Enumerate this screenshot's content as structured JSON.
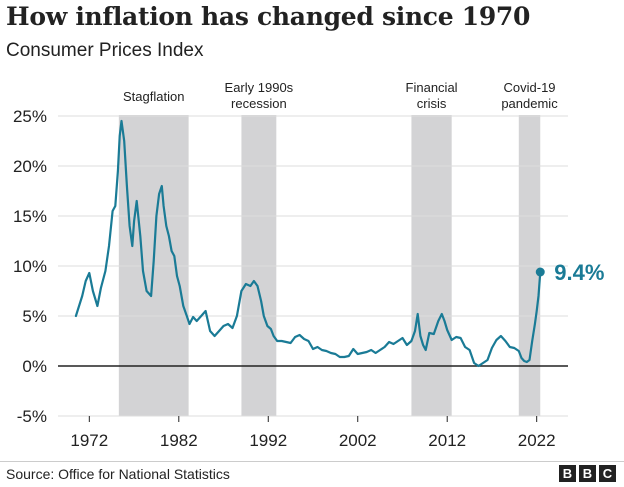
{
  "header": {
    "title": "How inflation has changed since 1970",
    "subtitle": "Consumer Prices Index"
  },
  "footer": {
    "source": "Source: Office for National Statistics",
    "brand_letters": [
      "B",
      "B",
      "C"
    ]
  },
  "colors": {
    "line": "#1a7b96",
    "band": "#d3d3d5",
    "grid": "#dddddd",
    "zero_line": "#222222",
    "text": "#222222"
  },
  "chart_data": {
    "type": "line",
    "title": "How inflation has changed since 1970",
    "subtitle": "Consumer Prices Index",
    "xlabel": "",
    "ylabel": "",
    "x_ticks": [
      1972,
      1982,
      1992,
      2002,
      2012,
      2022
    ],
    "x_tick_labels": [
      "1972",
      "1982",
      "1992",
      "2002",
      "2012",
      "2022"
    ],
    "y_ticks": [
      -5,
      0,
      5,
      10,
      15,
      20,
      25
    ],
    "y_tick_labels": [
      "-5%",
      "0%",
      "5%",
      "10%",
      "15%",
      "20%",
      "25%"
    ],
    "xlim": [
      1968.5,
      2025.5
    ],
    "ylim": [
      -5,
      25
    ],
    "grid": true,
    "end_label": "9.4%",
    "shaded_periods": [
      {
        "label": "Stagflation",
        "lines": [
          "Stagflation"
        ],
        "start": 1975.3,
        "end": 1983.1
      },
      {
        "label": "Early 1990s recession",
        "lines": [
          "Early 1990s",
          "recession"
        ],
        "start": 1989.0,
        "end": 1992.9
      },
      {
        "label": "Financial crisis",
        "lines": [
          "Financial",
          "crisis"
        ],
        "start": 2008.0,
        "end": 2012.5
      },
      {
        "label": "Covid-19 pandemic",
        "lines": [
          "Covid-19",
          "pandemic"
        ],
        "start": 2020.0,
        "end": 2022.4
      }
    ],
    "series": [
      {
        "name": "CPI annual rate (%)",
        "x": [
          1970.5,
          1971.2,
          1971.6,
          1972.0,
          1972.4,
          1972.9,
          1973.3,
          1973.8,
          1974.2,
          1974.6,
          1974.9,
          1975.2,
          1975.4,
          1975.6,
          1975.9,
          1976.2,
          1976.5,
          1976.8,
          1977.0,
          1977.3,
          1977.7,
          1978.0,
          1978.4,
          1978.9,
          1979.2,
          1979.5,
          1979.8,
          1980.1,
          1980.3,
          1980.6,
          1980.9,
          1981.2,
          1981.5,
          1981.8,
          1982.1,
          1982.5,
          1982.9,
          1983.2,
          1983.6,
          1984.0,
          1984.5,
          1985.0,
          1985.5,
          1986.0,
          1986.5,
          1987.0,
          1987.5,
          1988.0,
          1988.5,
          1989.0,
          1989.5,
          1990.0,
          1990.4,
          1990.8,
          1991.2,
          1991.5,
          1991.9,
          1992.3,
          1992.6,
          1993.0,
          1993.5,
          1994.0,
          1994.5,
          1995.0,
          1995.5,
          1996.0,
          1996.5,
          1997.0,
          1997.5,
          1998.0,
          1998.5,
          1999.0,
          1999.5,
          2000.0,
          2000.5,
          2001.0,
          2001.5,
          2002.0,
          2002.5,
          2003.0,
          2003.5,
          2004.0,
          2004.5,
          2005.0,
          2005.5,
          2006.0,
          2006.5,
          2007.0,
          2007.5,
          2008.0,
          2008.4,
          2008.7,
          2009.0,
          2009.3,
          2009.6,
          2010.0,
          2010.5,
          2011.0,
          2011.4,
          2011.7,
          2012.0,
          2012.5,
          2013.0,
          2013.5,
          2014.0,
          2014.5,
          2015.0,
          2015.5,
          2016.0,
          2016.5,
          2017.0,
          2017.5,
          2018.0,
          2018.5,
          2019.0,
          2019.5,
          2020.0,
          2020.3,
          2020.6,
          2020.9,
          2021.2,
          2021.5,
          2021.8,
          2022.0,
          2022.2,
          2022.4
        ],
        "values": [
          5.0,
          7.0,
          8.5,
          9.3,
          7.5,
          6.0,
          7.8,
          9.5,
          12.0,
          15.5,
          16.0,
          19.5,
          23.0,
          24.5,
          22.5,
          18.0,
          14.0,
          12.0,
          14.5,
          16.5,
          13.0,
          9.5,
          7.5,
          7.0,
          10.5,
          15.0,
          17.2,
          18.0,
          16.0,
          14.0,
          13.0,
          11.5,
          11.0,
          9.0,
          8.0,
          6.0,
          5.0,
          4.2,
          4.9,
          4.5,
          5.0,
          5.5,
          3.5,
          3.0,
          3.5,
          4.0,
          4.2,
          3.8,
          5.0,
          7.5,
          8.2,
          8.0,
          8.5,
          8.0,
          6.5,
          5.0,
          4.0,
          3.7,
          3.0,
          2.5,
          2.5,
          2.4,
          2.3,
          2.9,
          3.1,
          2.7,
          2.5,
          1.7,
          1.9,
          1.6,
          1.5,
          1.3,
          1.2,
          0.9,
          0.9,
          1.0,
          1.7,
          1.2,
          1.3,
          1.4,
          1.6,
          1.3,
          1.6,
          1.9,
          2.4,
          2.2,
          2.5,
          2.8,
          2.1,
          2.5,
          3.5,
          5.2,
          3.0,
          2.1,
          1.6,
          3.3,
          3.2,
          4.5,
          5.2,
          4.5,
          3.6,
          2.6,
          2.9,
          2.8,
          1.9,
          1.6,
          0.3,
          0.0,
          0.3,
          0.6,
          1.8,
          2.6,
          3.0,
          2.5,
          1.9,
          1.8,
          1.5,
          0.8,
          0.5,
          0.4,
          0.6,
          2.5,
          4.2,
          5.5,
          7.0,
          9.4
        ]
      }
    ]
  }
}
